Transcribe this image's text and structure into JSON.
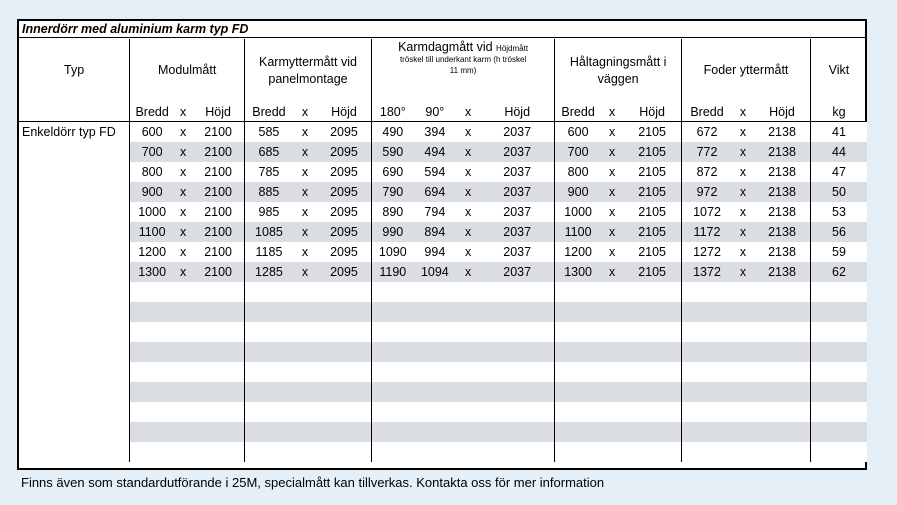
{
  "title": "Innerdörr med aluminium karm typ FD",
  "headers": {
    "typ": "Typ",
    "modul": "Modulmått",
    "karmytter_line1": "Karmyttermått vid",
    "karmytter_line2": "panelmontage",
    "karmdag_main": "Karmdagmått vid",
    "karmdag_small1": "Höjdmått",
    "karmdag_small2": "tröskel till underkant karm (h tröskel",
    "karmdag_small3": "11 mm)",
    "haltag_line1": "Håltagningsmått i",
    "haltag_line2": "väggen",
    "foder": "Foder yttermått",
    "vikt": "Vikt"
  },
  "subheaders": {
    "bredd": "Bredd",
    "x": "x",
    "hojd": "Höjd",
    "deg180": "180°",
    "deg90": "90°",
    "kg": "kg"
  },
  "type_label": "Enkeldörr typ FD",
  "rows": [
    [
      "600",
      "2100",
      "585",
      "2095",
      "490",
      "394",
      "2037",
      "600",
      "2105",
      "672",
      "2138",
      "41"
    ],
    [
      "700",
      "2100",
      "685",
      "2095",
      "590",
      "494",
      "2037",
      "700",
      "2105",
      "772",
      "2138",
      "44"
    ],
    [
      "800",
      "2100",
      "785",
      "2095",
      "690",
      "594",
      "2037",
      "800",
      "2105",
      "872",
      "2138",
      "47"
    ],
    [
      "900",
      "2100",
      "885",
      "2095",
      "790",
      "694",
      "2037",
      "900",
      "2105",
      "972",
      "2138",
      "50"
    ],
    [
      "1000",
      "2100",
      "985",
      "2095",
      "890",
      "794",
      "2037",
      "1000",
      "2105",
      "1072",
      "2138",
      "53"
    ],
    [
      "1100",
      "2100",
      "1085",
      "2095",
      "990",
      "894",
      "2037",
      "1100",
      "2105",
      "1172",
      "2138",
      "56"
    ],
    [
      "1200",
      "2100",
      "1185",
      "2095",
      "1090",
      "994",
      "2037",
      "1200",
      "2105",
      "1272",
      "2138",
      "59"
    ],
    [
      "1300",
      "2100",
      "1285",
      "2095",
      "1190",
      "1094",
      "2037",
      "1300",
      "2105",
      "1372",
      "2138",
      "62"
    ]
  ],
  "empty_row_count": 9,
  "colors": {
    "background": "#e4eff7",
    "row_shade": "#dadde1"
  },
  "footnote": "Finns även som standardutförande i 25M, specialmått kan tillverkas. Kontakta oss för mer information"
}
